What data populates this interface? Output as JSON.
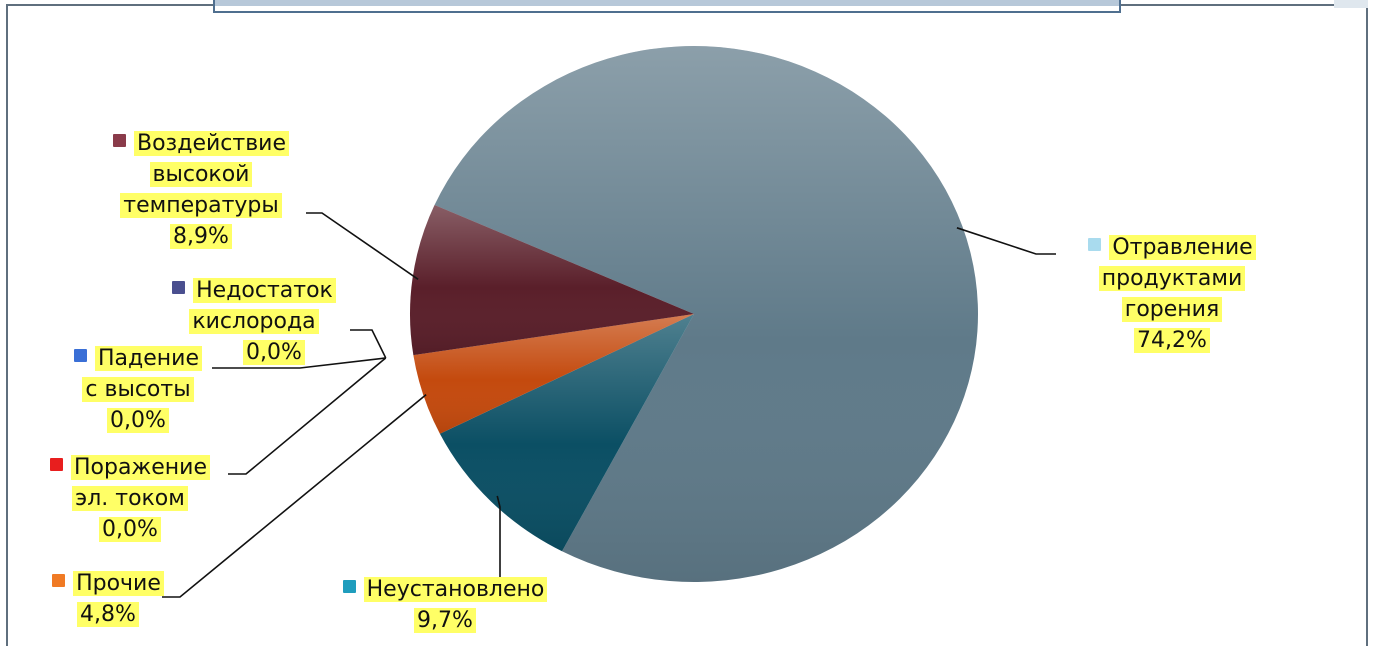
{
  "chart_data": {
    "type": "pie",
    "title": "",
    "legend": "none",
    "slices": [
      {
        "key": "poisoning",
        "line1": "Отравление",
        "line2": "продуктами",
        "line3": "горения",
        "pct": "74,2%",
        "value": 74.2,
        "color": "#5f7a89",
        "swatch": "#a9dbee"
      },
      {
        "key": "unknown",
        "line1": "Неустановлено",
        "pct": "9,7%",
        "value": 9.7,
        "color": "#0b4f64",
        "swatch": "#1f9dbd"
      },
      {
        "key": "other",
        "line1": "Прочие",
        "pct": "4,8%",
        "value": 4.8,
        "color": "#c44a0e",
        "swatch": "#f07a24"
      },
      {
        "key": "electric",
        "line1": "Поражение",
        "line2": "эл. током",
        "pct": "0,0%",
        "value": 0.0,
        "color": "#c00000",
        "swatch": "#e81e1e"
      },
      {
        "key": "fall",
        "line1": "Падение",
        "line2": "с высоты",
        "pct": "0,0%",
        "value": 0.0,
        "color": "#2f5fbf",
        "swatch": "#3a6fd6"
      },
      {
        "key": "oxygen",
        "line1": "Недостаток",
        "line2": "кислорода",
        "pct": "0,0%",
        "value": 0.0,
        "color": "#3b3f7a",
        "swatch": "#4a4f8f"
      },
      {
        "key": "heat",
        "line1": "Воздействие",
        "line2": "высокой",
        "line3": "температуры",
        "pct": "8,9%",
        "value": 8.9,
        "color": "#5a1f2a",
        "swatch": "#8a3b4a"
      }
    ]
  }
}
